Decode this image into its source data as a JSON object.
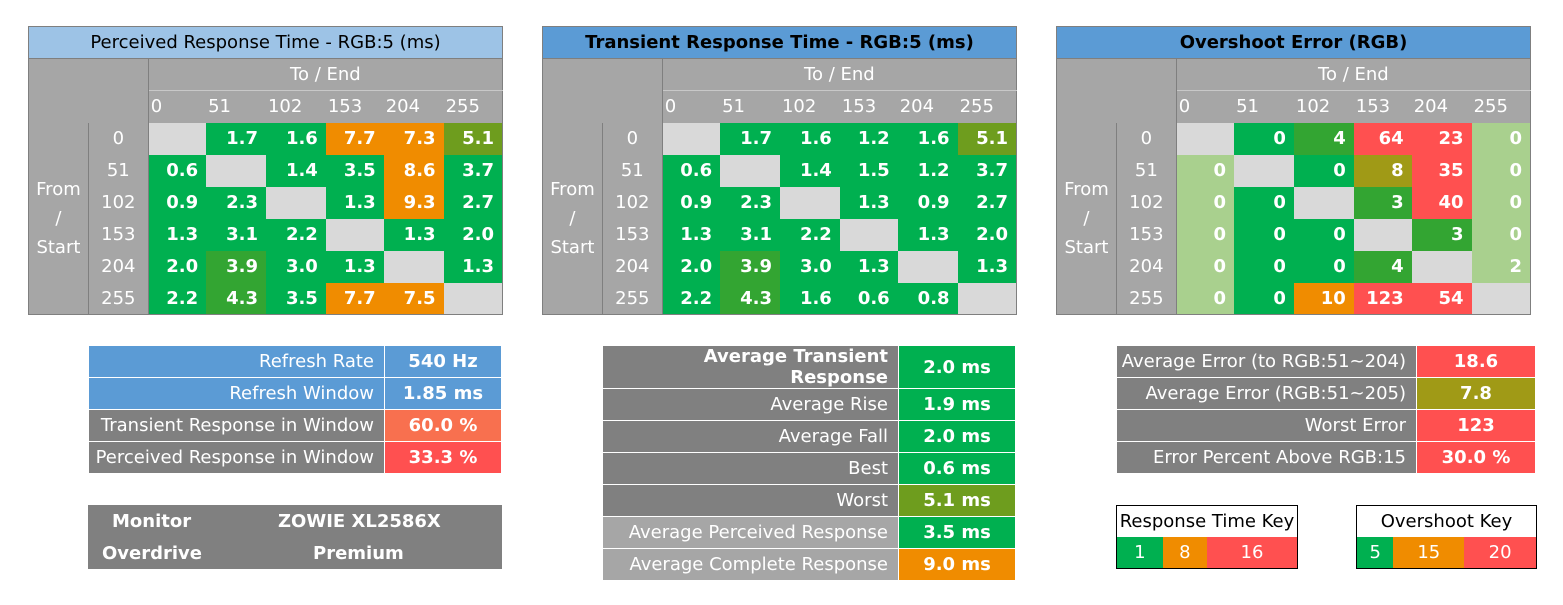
{
  "colors": {
    "green": "#00b050",
    "green2": "#33a532",
    "olive": "#6e9d1e",
    "olive2": "#a09a16",
    "orange": "#f08c00",
    "red": "#ff5050",
    "salmon": "#f8704f",
    "lightgreen": "#a9d08e",
    "diag": "#d9d9d9"
  },
  "labels": {
    "to_end": "To / End",
    "from_start": [
      "From",
      "/",
      "Start"
    ]
  },
  "chart_data": [
    {
      "type": "heatmap",
      "title": "Perceived Response Time - RGB:5 (ms)",
      "axis_labels": [
        "0",
        "51",
        "102",
        "153",
        "204",
        "255"
      ],
      "rows": [
        {
          "label": "0",
          "values": [
            "",
            "1.7",
            "1.6",
            "7.7",
            "7.3",
            "5.1"
          ],
          "colors": [
            "diag",
            "green",
            "green",
            "orange",
            "orange",
            "olive"
          ]
        },
        {
          "label": "51",
          "values": [
            "0.6",
            "",
            "1.4",
            "3.5",
            "8.6",
            "3.7"
          ],
          "colors": [
            "green",
            "diag",
            "green",
            "green",
            "orange",
            "green"
          ]
        },
        {
          "label": "102",
          "values": [
            "0.9",
            "2.3",
            "",
            "1.3",
            "9.3",
            "2.7"
          ],
          "colors": [
            "green",
            "green",
            "diag",
            "green",
            "orange",
            "green"
          ]
        },
        {
          "label": "153",
          "values": [
            "1.3",
            "3.1",
            "2.2",
            "",
            "1.3",
            "2.0"
          ],
          "colors": [
            "green",
            "green",
            "green",
            "diag",
            "green",
            "green"
          ]
        },
        {
          "label": "204",
          "values": [
            "2.0",
            "3.9",
            "3.0",
            "1.3",
            "",
            "1.3"
          ],
          "colors": [
            "green",
            "green2",
            "green",
            "green",
            "diag",
            "green"
          ]
        },
        {
          "label": "255",
          "values": [
            "2.2",
            "4.3",
            "3.5",
            "7.7",
            "7.5",
            ""
          ],
          "colors": [
            "green",
            "green2",
            "green",
            "orange",
            "orange",
            "diag"
          ]
        }
      ]
    },
    {
      "type": "heatmap",
      "title": "Transient Response Time - RGB:5 (ms)",
      "axis_labels": [
        "0",
        "51",
        "102",
        "153",
        "204",
        "255"
      ],
      "rows": [
        {
          "label": "0",
          "values": [
            "",
            "1.7",
            "1.6",
            "1.2",
            "1.6",
            "5.1"
          ],
          "colors": [
            "diag",
            "green",
            "green",
            "green",
            "green",
            "olive"
          ]
        },
        {
          "label": "51",
          "values": [
            "0.6",
            "",
            "1.4",
            "1.5",
            "1.2",
            "3.7"
          ],
          "colors": [
            "green",
            "diag",
            "green",
            "green",
            "green",
            "green"
          ]
        },
        {
          "label": "102",
          "values": [
            "0.9",
            "2.3",
            "",
            "1.3",
            "0.9",
            "2.7"
          ],
          "colors": [
            "green",
            "green",
            "diag",
            "green",
            "green",
            "green"
          ]
        },
        {
          "label": "153",
          "values": [
            "1.3",
            "3.1",
            "2.2",
            "",
            "1.3",
            "2.0"
          ],
          "colors": [
            "green",
            "green",
            "green",
            "diag",
            "green",
            "green"
          ]
        },
        {
          "label": "204",
          "values": [
            "2.0",
            "3.9",
            "3.0",
            "1.3",
            "",
            "1.3"
          ],
          "colors": [
            "green",
            "green2",
            "green",
            "green",
            "diag",
            "green"
          ]
        },
        {
          "label": "255",
          "values": [
            "2.2",
            "4.3",
            "1.6",
            "0.6",
            "0.8",
            ""
          ],
          "colors": [
            "green",
            "green2",
            "green",
            "green",
            "green",
            "diag"
          ]
        }
      ]
    },
    {
      "type": "heatmap",
      "title": "Overshoot Error (RGB)",
      "axis_labels": [
        "0",
        "51",
        "102",
        "153",
        "204",
        "255"
      ],
      "rows": [
        {
          "label": "0",
          "values": [
            "",
            "0",
            "4",
            "64",
            "23",
            "0"
          ],
          "colors": [
            "diag",
            "green",
            "green2",
            "red",
            "red",
            "lightgreen"
          ]
        },
        {
          "label": "51",
          "values": [
            "0",
            "",
            "0",
            "8",
            "35",
            "0"
          ],
          "colors": [
            "lightgreen",
            "diag",
            "green",
            "olive2",
            "red",
            "lightgreen"
          ]
        },
        {
          "label": "102",
          "values": [
            "0",
            "0",
            "",
            "3",
            "40",
            "0"
          ],
          "colors": [
            "lightgreen",
            "green",
            "diag",
            "green2",
            "red",
            "lightgreen"
          ]
        },
        {
          "label": "153",
          "values": [
            "0",
            "0",
            "0",
            "",
            "3",
            "0"
          ],
          "colors": [
            "lightgreen",
            "green",
            "green",
            "diag",
            "green2",
            "lightgreen"
          ]
        },
        {
          "label": "204",
          "values": [
            "0",
            "0",
            "0",
            "4",
            "",
            "2"
          ],
          "colors": [
            "lightgreen",
            "green",
            "green",
            "green2",
            "diag",
            "lightgreen"
          ]
        },
        {
          "label": "255",
          "values": [
            "0",
            "0",
            "10",
            "123",
            "54",
            ""
          ],
          "colors": [
            "lightgreen",
            "green",
            "orange",
            "red",
            "red",
            "diag"
          ]
        }
      ]
    }
  ],
  "refresh_info": [
    {
      "label": "Refresh Rate",
      "value": "540 Hz",
      "label_bg": "bluebg",
      "value_bg": "#5b9bd5"
    },
    {
      "label": "Refresh Window",
      "value": "1.85 ms",
      "label_bg": "bluebg",
      "value_bg": "#5b9bd5"
    },
    {
      "label": "Transient Response in Window",
      "value": "60.0 %",
      "label_bg": "darkbg",
      "value_bg": "#f8704f"
    },
    {
      "label": "Perceived Response in Window",
      "value": "33.3 %",
      "label_bg": "darkbg",
      "value_bg": "#ff5050"
    }
  ],
  "monitor_info": {
    "monitor_label": "Monitor",
    "monitor_value": "ZOWIE XL2586X",
    "overdrive_label": "Overdrive",
    "overdrive_value": "Premium"
  },
  "averages": [
    {
      "label": "Average Transient Response",
      "value": "2.0 ms",
      "bold": true,
      "label_bg": "#808080",
      "value_bg": "#00b050"
    },
    {
      "label": "Average Rise",
      "value": "1.9 ms",
      "bold": false,
      "label_bg": "#808080",
      "value_bg": "#00b050"
    },
    {
      "label": "Average Fall",
      "value": "2.0 ms",
      "bold": false,
      "label_bg": "#808080",
      "value_bg": "#00b050"
    },
    {
      "label": "Best",
      "value": "0.6 ms",
      "bold": false,
      "label_bg": "#808080",
      "value_bg": "#00b050"
    },
    {
      "label": "Worst",
      "value": "5.1 ms",
      "bold": false,
      "label_bg": "#808080",
      "value_bg": "#6e9d1e"
    },
    {
      "label": "Average Perceived Response",
      "value": "3.5 ms",
      "bold": false,
      "label_bg": "#a6a6a6",
      "value_bg": "#00b050"
    },
    {
      "label": "Average Complete Response",
      "value": "9.0 ms",
      "bold": false,
      "label_bg": "#a6a6a6",
      "value_bg": "#f08c00"
    }
  ],
  "errors": [
    {
      "label": "Average Error (to RGB:51~204)",
      "value": "18.6",
      "value_bg": "#ff5050"
    },
    {
      "label": "Average Error (RGB:51~205)",
      "value": "7.8",
      "value_bg": "#a09a16"
    },
    {
      "label": "Worst Error",
      "value": "123",
      "value_bg": "#ff5050"
    },
    {
      "label": "Error Percent Above RGB:15",
      "value": "30.0 %",
      "value_bg": "#ff5050"
    }
  ],
  "response_key": {
    "title": "Response Time Key",
    "items": [
      {
        "v": "1",
        "c": "#00b050"
      },
      {
        "v": "8",
        "c": "#f08c00"
      },
      {
        "v": "16",
        "c": "#ff5050"
      }
    ]
  },
  "overshoot_key": {
    "title": "Overshoot Key",
    "items": [
      {
        "v": "5",
        "c": "#00b050"
      },
      {
        "v": "15",
        "c": "#f08c00"
      },
      {
        "v": "20",
        "c": "#ff5050"
      }
    ]
  }
}
